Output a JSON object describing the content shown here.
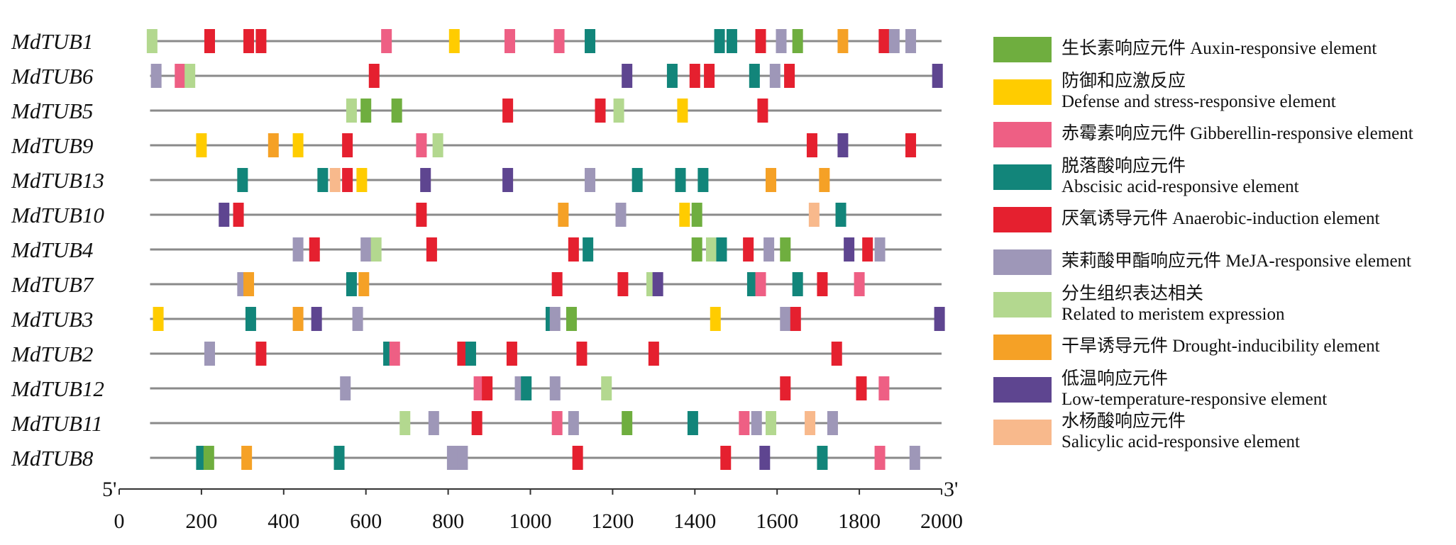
{
  "chart_data": {
    "type": "gene-structure",
    "xlim": [
      0,
      2000
    ],
    "ticks": [
      0,
      200,
      400,
      600,
      800,
      1000,
      1200,
      1400,
      1600,
      1800,
      2000
    ],
    "tick_labels": [
      "0",
      "200",
      "400",
      "600",
      "800",
      "1000",
      "1200",
      "1400",
      "1600",
      "1800",
      "2000"
    ],
    "end_labels": {
      "left": "5'",
      "right": "3'"
    },
    "element_types": [
      {
        "key": "auxin",
        "zh": "生长素响应元件",
        "en": "Auxin-responsive element",
        "color": "#6fae3f",
        "lines": 1
      },
      {
        "key": "defense",
        "zh": "防御和应激反应",
        "en": "Defense and stress-responsive element",
        "color": "#ffcc00",
        "lines": 2
      },
      {
        "key": "gibberellin",
        "zh": "赤霉素响应元件",
        "en": "Gibberellin-responsive element",
        "color": "#ee5f84",
        "lines": 1
      },
      {
        "key": "abscisic",
        "zh": "脱落酸响应元件",
        "en": "Abscisic acid-responsive element",
        "color": "#12857a",
        "lines": 2
      },
      {
        "key": "anaerobic",
        "zh": "厌氧诱导元件",
        "en": "Anaerobic-induction element",
        "color": "#e5202f",
        "lines": 1
      },
      {
        "key": "meja",
        "zh": "茉莉酸甲酯响应元件",
        "en": "MeJA-responsive element",
        "color": "#9e97b8",
        "lines": 1
      },
      {
        "key": "meristem",
        "zh": "分生组织表达相关",
        "en": "Related to meristem expression",
        "color": "#b3d88f",
        "lines": 2
      },
      {
        "key": "drought",
        "zh": "干旱诱导元件",
        "en": "Drought-inducibility element",
        "color": "#f5a126",
        "lines": 1
      },
      {
        "key": "lowtemp",
        "zh": "低温响应元件",
        "en": "Low-temperature-responsive element",
        "color": "#5e4590",
        "lines": 2
      },
      {
        "key": "salicylic",
        "zh": "水杨酸响应元件",
        "en": "Salicylic acid-responsive element",
        "color": "#f8b98c",
        "lines": 2
      }
    ],
    "series": [
      {
        "gene": "MdTUB1",
        "elements": [
          {
            "pos": 80,
            "type": "meristem"
          },
          {
            "pos": 220,
            "type": "anaerobic"
          },
          {
            "pos": 315,
            "type": "anaerobic"
          },
          {
            "pos": 345,
            "type": "anaerobic"
          },
          {
            "pos": 650,
            "type": "gibberellin"
          },
          {
            "pos": 815,
            "type": "defense"
          },
          {
            "pos": 950,
            "type": "gibberellin"
          },
          {
            "pos": 1070,
            "type": "gibberellin"
          },
          {
            "pos": 1145,
            "type": "abscisic"
          },
          {
            "pos": 1460,
            "type": "abscisic"
          },
          {
            "pos": 1490,
            "type": "abscisic"
          },
          {
            "pos": 1560,
            "type": "anaerobic"
          },
          {
            "pos": 1610,
            "type": "meja"
          },
          {
            "pos": 1650,
            "type": "auxin"
          },
          {
            "pos": 1760,
            "type": "drought"
          },
          {
            "pos": 1860,
            "type": "anaerobic"
          },
          {
            "pos": 1885,
            "type": "meja"
          },
          {
            "pos": 1925,
            "type": "meja"
          }
        ]
      },
      {
        "gene": "MdTUB6",
        "elements": [
          {
            "pos": 90,
            "type": "meja"
          },
          {
            "pos": 148,
            "type": "gibberellin"
          },
          {
            "pos": 172,
            "type": "meristem"
          },
          {
            "pos": 620,
            "type": "anaerobic"
          },
          {
            "pos": 1235,
            "type": "lowtemp"
          },
          {
            "pos": 1345,
            "type": "abscisic"
          },
          {
            "pos": 1400,
            "type": "anaerobic"
          },
          {
            "pos": 1435,
            "type": "anaerobic"
          },
          {
            "pos": 1545,
            "type": "abscisic"
          },
          {
            "pos": 1595,
            "type": "meja"
          },
          {
            "pos": 1630,
            "type": "anaerobic"
          },
          {
            "pos": 1990,
            "type": "lowtemp"
          }
        ]
      },
      {
        "gene": "MdTUB5",
        "elements": [
          {
            "pos": 565,
            "type": "meristem"
          },
          {
            "pos": 600,
            "type": "auxin"
          },
          {
            "pos": 675,
            "type": "auxin"
          },
          {
            "pos": 945,
            "type": "anaerobic"
          },
          {
            "pos": 1170,
            "type": "anaerobic"
          },
          {
            "pos": 1215,
            "type": "meristem"
          },
          {
            "pos": 1370,
            "type": "defense"
          },
          {
            "pos": 1565,
            "type": "anaerobic"
          }
        ]
      },
      {
        "gene": "MdTUB9",
        "elements": [
          {
            "pos": 200,
            "type": "defense"
          },
          {
            "pos": 375,
            "type": "drought"
          },
          {
            "pos": 435,
            "type": "defense"
          },
          {
            "pos": 555,
            "type": "anaerobic"
          },
          {
            "pos": 735,
            "type": "gibberellin"
          },
          {
            "pos": 775,
            "type": "meristem"
          },
          {
            "pos": 1685,
            "type": "anaerobic"
          },
          {
            "pos": 1760,
            "type": "lowtemp"
          },
          {
            "pos": 1925,
            "type": "anaerobic"
          }
        ]
      },
      {
        "gene": "MdTUB13",
        "elements": [
          {
            "pos": 300,
            "type": "abscisic"
          },
          {
            "pos": 495,
            "type": "abscisic"
          },
          {
            "pos": 525,
            "type": "salicylic"
          },
          {
            "pos": 555,
            "type": "anaerobic"
          },
          {
            "pos": 590,
            "type": "defense"
          },
          {
            "pos": 745,
            "type": "lowtemp"
          },
          {
            "pos": 945,
            "type": "lowtemp"
          },
          {
            "pos": 1145,
            "type": "meja"
          },
          {
            "pos": 1260,
            "type": "abscisic"
          },
          {
            "pos": 1365,
            "type": "abscisic"
          },
          {
            "pos": 1420,
            "type": "abscisic"
          },
          {
            "pos": 1585,
            "type": "drought"
          },
          {
            "pos": 1715,
            "type": "drought"
          }
        ]
      },
      {
        "gene": "MdTUB10",
        "elements": [
          {
            "pos": 255,
            "type": "lowtemp"
          },
          {
            "pos": 290,
            "type": "anaerobic"
          },
          {
            "pos": 735,
            "type": "anaerobic"
          },
          {
            "pos": 1080,
            "type": "drought"
          },
          {
            "pos": 1220,
            "type": "meja"
          },
          {
            "pos": 1375,
            "type": "defense"
          },
          {
            "pos": 1405,
            "type": "auxin"
          },
          {
            "pos": 1690,
            "type": "salicylic"
          },
          {
            "pos": 1755,
            "type": "abscisic"
          }
        ]
      },
      {
        "gene": "MdTUB4",
        "elements": [
          {
            "pos": 435,
            "type": "meja"
          },
          {
            "pos": 475,
            "type": "anaerobic"
          },
          {
            "pos": 600,
            "type": "meja"
          },
          {
            "pos": 625,
            "type": "meristem"
          },
          {
            "pos": 760,
            "type": "anaerobic"
          },
          {
            "pos": 1105,
            "type": "anaerobic"
          },
          {
            "pos": 1140,
            "type": "abscisic"
          },
          {
            "pos": 1405,
            "type": "auxin"
          },
          {
            "pos": 1440,
            "type": "meristem"
          },
          {
            "pos": 1465,
            "type": "abscisic"
          },
          {
            "pos": 1530,
            "type": "anaerobic"
          },
          {
            "pos": 1580,
            "type": "meja"
          },
          {
            "pos": 1620,
            "type": "auxin"
          },
          {
            "pos": 1775,
            "type": "lowtemp"
          },
          {
            "pos": 1820,
            "type": "anaerobic"
          },
          {
            "pos": 1850,
            "type": "meja"
          }
        ]
      },
      {
        "gene": "MdTUB7",
        "elements": [
          {
            "pos": 300,
            "type": "meja"
          },
          {
            "pos": 315,
            "type": "drought"
          },
          {
            "pos": 565,
            "type": "abscisic"
          },
          {
            "pos": 595,
            "type": "drought"
          },
          {
            "pos": 1065,
            "type": "anaerobic"
          },
          {
            "pos": 1225,
            "type": "anaerobic"
          },
          {
            "pos": 1295,
            "type": "meristem"
          },
          {
            "pos": 1310,
            "type": "lowtemp"
          },
          {
            "pos": 1540,
            "type": "abscisic"
          },
          {
            "pos": 1560,
            "type": "gibberellin"
          },
          {
            "pos": 1650,
            "type": "abscisic"
          },
          {
            "pos": 1710,
            "type": "anaerobic"
          },
          {
            "pos": 1800,
            "type": "gibberellin"
          }
        ]
      },
      {
        "gene": "MdTUB3",
        "elements": [
          {
            "pos": 95,
            "type": "defense"
          },
          {
            "pos": 320,
            "type": "abscisic"
          },
          {
            "pos": 435,
            "type": "drought"
          },
          {
            "pos": 480,
            "type": "lowtemp"
          },
          {
            "pos": 580,
            "type": "meja"
          },
          {
            "pos": 1050,
            "type": "abscisic"
          },
          {
            "pos": 1060,
            "type": "meja"
          },
          {
            "pos": 1100,
            "type": "auxin"
          },
          {
            "pos": 1450,
            "type": "defense"
          },
          {
            "pos": 1620,
            "type": "meja"
          },
          {
            "pos": 1645,
            "type": "anaerobic"
          },
          {
            "pos": 1995,
            "type": "lowtemp"
          }
        ]
      },
      {
        "gene": "MdTUB2",
        "elements": [
          {
            "pos": 220,
            "type": "meja"
          },
          {
            "pos": 345,
            "type": "anaerobic"
          },
          {
            "pos": 655,
            "type": "abscisic"
          },
          {
            "pos": 670,
            "type": "gibberellin"
          },
          {
            "pos": 835,
            "type": "anaerobic"
          },
          {
            "pos": 855,
            "type": "abscisic"
          },
          {
            "pos": 955,
            "type": "anaerobic"
          },
          {
            "pos": 1125,
            "type": "anaerobic"
          },
          {
            "pos": 1300,
            "type": "anaerobic"
          },
          {
            "pos": 1745,
            "type": "anaerobic"
          }
        ]
      },
      {
        "gene": "MdTUB12",
        "elements": [
          {
            "pos": 550,
            "type": "meja"
          },
          {
            "pos": 875,
            "type": "gibberellin"
          },
          {
            "pos": 895,
            "type": "anaerobic"
          },
          {
            "pos": 975,
            "type": "meja"
          },
          {
            "pos": 990,
            "type": "abscisic"
          },
          {
            "pos": 1060,
            "type": "meja"
          },
          {
            "pos": 1185,
            "type": "meristem"
          },
          {
            "pos": 1620,
            "type": "anaerobic"
          },
          {
            "pos": 1805,
            "type": "anaerobic"
          },
          {
            "pos": 1860,
            "type": "gibberellin"
          }
        ]
      },
      {
        "gene": "MdTUB11",
        "elements": [
          {
            "pos": 695,
            "type": "meristem"
          },
          {
            "pos": 765,
            "type": "meja"
          },
          {
            "pos": 870,
            "type": "anaerobic"
          },
          {
            "pos": 1065,
            "type": "gibberellin"
          },
          {
            "pos": 1105,
            "type": "meja"
          },
          {
            "pos": 1235,
            "type": "auxin"
          },
          {
            "pos": 1395,
            "type": "abscisic"
          },
          {
            "pos": 1520,
            "type": "gibberellin"
          },
          {
            "pos": 1550,
            "type": "meja"
          },
          {
            "pos": 1585,
            "type": "meristem"
          },
          {
            "pos": 1680,
            "type": "salicylic"
          },
          {
            "pos": 1735,
            "type": "meja"
          }
        ]
      },
      {
        "gene": "MdTUB8",
        "elements": [
          {
            "pos": 200,
            "type": "abscisic"
          },
          {
            "pos": 218,
            "type": "auxin"
          },
          {
            "pos": 310,
            "type": "drought"
          },
          {
            "pos": 535,
            "type": "abscisic"
          },
          {
            "pos": 810,
            "type": "meja"
          },
          {
            "pos": 835,
            "type": "meja"
          },
          {
            "pos": 1115,
            "type": "anaerobic"
          },
          {
            "pos": 1475,
            "type": "anaerobic"
          },
          {
            "pos": 1570,
            "type": "lowtemp"
          },
          {
            "pos": 1710,
            "type": "abscisic"
          },
          {
            "pos": 1850,
            "type": "gibberellin"
          },
          {
            "pos": 1935,
            "type": "meja"
          }
        ]
      }
    ]
  }
}
